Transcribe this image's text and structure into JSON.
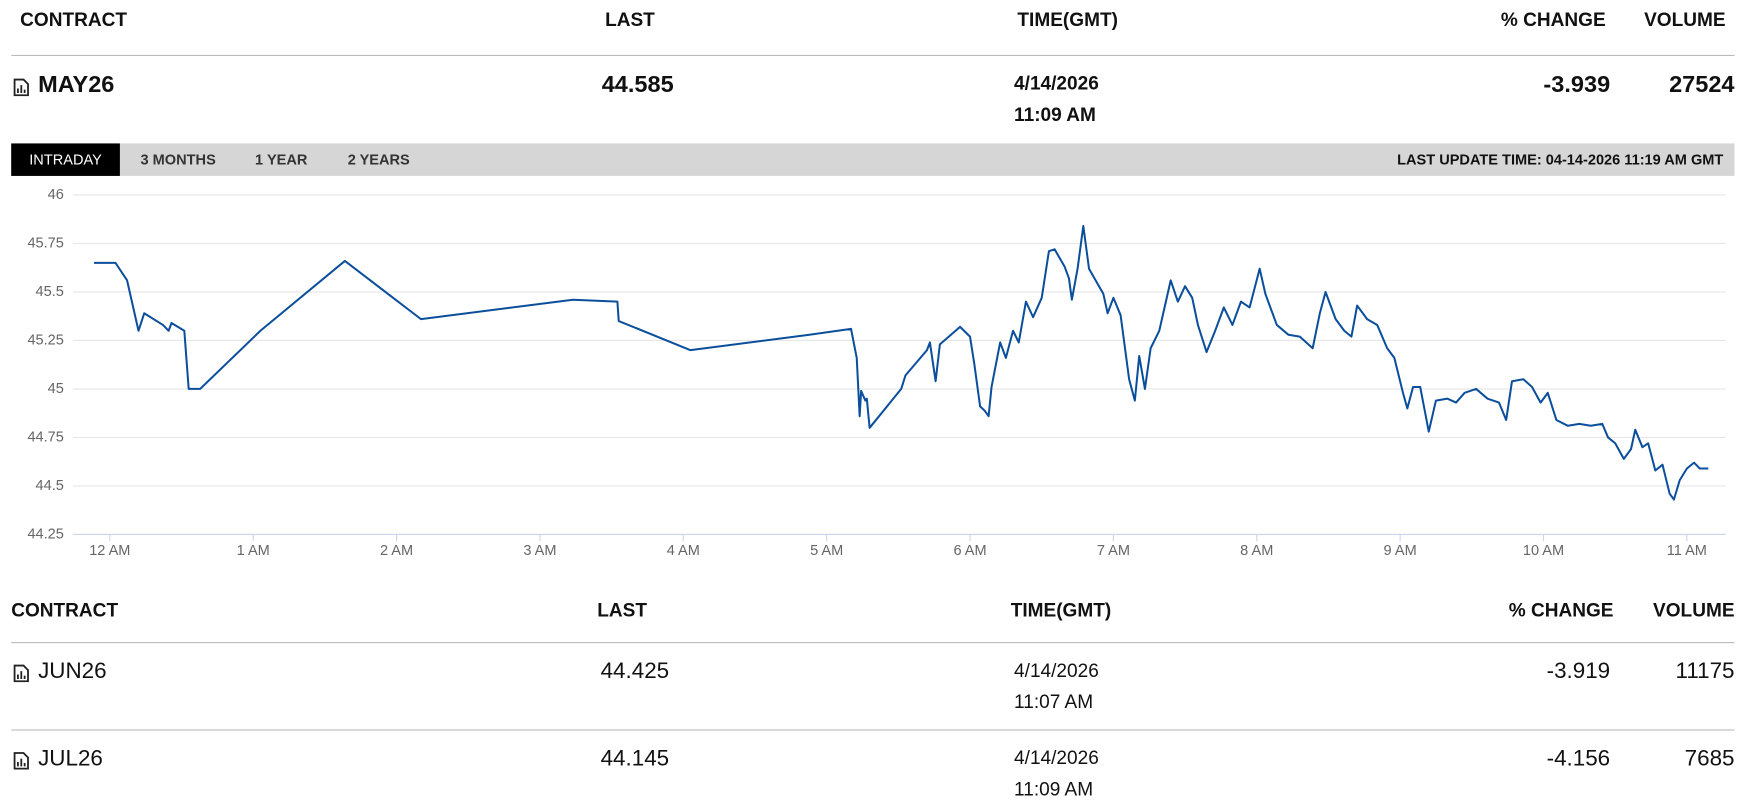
{
  "top_table": {
    "headers": [
      "CONTRACT",
      "LAST",
      "TIME(GMT)",
      "% CHANGE",
      "VOLUME"
    ],
    "rows": [
      {
        "contract": "MAY26",
        "last": 44.585,
        "date": "4/14/2026",
        "time": "11:09 AM",
        "change": -3.939,
        "volume": 27524
      }
    ]
  },
  "tabs": [
    "INTRADAY",
    "3 MONTHS",
    "1 YEAR",
    "2 YEARS"
  ],
  "last_update": "LAST UPDATE TIME: 04-14-2026 11:19 AM GMT",
  "chart_data": {
    "type": "line",
    "color": "#0b4f9c",
    "grid": true,
    "x": [
      -0.11,
      0.04,
      0.12,
      0.2,
      0.24,
      0.37,
      0.41,
      0.43,
      0.52,
      0.55,
      0.63,
      1.05,
      1.64,
      2.17,
      3.23,
      3.54,
      3.55,
      4.05,
      4.88,
      5.17,
      5.21,
      5.23,
      5.24,
      5.27,
      5.28,
      5.3,
      5.52,
      5.55,
      5.7,
      5.72,
      5.76,
      5.79,
      5.93,
      6.0,
      6.03,
      6.07,
      6.1,
      6.13,
      6.15,
      6.21,
      6.25,
      6.3,
      6.34,
      6.39,
      6.44,
      6.5,
      6.55,
      6.59,
      6.66,
      6.69,
      6.71,
      6.75,
      6.79,
      6.83,
      6.93,
      6.96,
      7.0,
      7.05,
      7.11,
      7.15,
      7.18,
      7.22,
      7.26,
      7.32,
      7.4,
      7.45,
      7.5,
      7.55,
      7.59,
      7.65,
      7.71,
      7.77,
      7.83,
      7.89,
      7.95,
      8.02,
      8.06,
      8.14,
      8.22,
      8.3,
      8.39,
      8.44,
      8.48,
      8.55,
      8.61,
      8.66,
      8.7,
      8.77,
      8.84,
      8.91,
      8.96,
      9.02,
      9.05,
      9.09,
      9.14,
      9.2,
      9.25,
      9.33,
      9.39,
      9.45,
      9.53,
      9.61,
      9.69,
      9.74,
      9.78,
      9.86,
      9.92,
      9.98,
      10.03,
      10.09,
      10.17,
      10.25,
      10.33,
      10.41,
      10.45,
      10.5,
      10.56,
      10.61,
      10.64,
      10.69,
      10.73,
      10.78,
      10.83,
      10.88,
      10.91,
      10.95,
      11.0,
      11.05,
      11.09,
      11.15
    ],
    "values": [
      45.65,
      45.65,
      45.56,
      45.3,
      45.39,
      45.33,
      45.3,
      45.34,
      45.3,
      45.0,
      45.0,
      45.3,
      45.66,
      45.36,
      45.46,
      45.45,
      45.35,
      45.2,
      45.28,
      45.31,
      45.16,
      44.86,
      44.99,
      44.94,
      44.95,
      44.8,
      45.0,
      45.07,
      45.2,
      45.24,
      45.04,
      45.23,
      45.32,
      45.27,
      45.13,
      44.91,
      44.89,
      44.86,
      45.01,
      45.24,
      45.16,
      45.3,
      45.24,
      45.45,
      45.37,
      45.47,
      45.71,
      45.72,
      45.63,
      45.57,
      45.46,
      45.62,
      45.84,
      45.62,
      45.49,
      45.39,
      45.47,
      45.38,
      45.05,
      44.94,
      45.17,
      45.0,
      45.21,
      45.3,
      45.56,
      45.45,
      45.53,
      45.47,
      45.33,
      45.19,
      45.3,
      45.42,
      45.33,
      45.45,
      45.42,
      45.62,
      45.49,
      45.33,
      45.28,
      45.27,
      45.21,
      45.39,
      45.5,
      45.36,
      45.3,
      45.27,
      45.43,
      45.36,
      45.33,
      45.21,
      45.16,
      44.98,
      44.9,
      45.01,
      45.01,
      44.78,
      44.94,
      44.95,
      44.93,
      44.98,
      45.0,
      44.95,
      44.93,
      44.84,
      45.04,
      45.05,
      45.01,
      44.93,
      44.98,
      44.84,
      44.81,
      44.82,
      44.81,
      44.82,
      44.75,
      44.72,
      44.64,
      44.69,
      44.79,
      44.7,
      44.72,
      44.58,
      44.61,
      44.46,
      44.43,
      44.53,
      44.59,
      44.62,
      44.59,
      44.59
    ],
    "xlim": [
      -0.258,
      11.27
    ],
    "ylim": [
      44.25,
      46
    ],
    "xticks": [
      {
        "value": 0,
        "label": "12 AM"
      },
      {
        "value": 1,
        "label": "1 AM"
      },
      {
        "value": 2,
        "label": "2 AM"
      },
      {
        "value": 3,
        "label": "3 AM"
      },
      {
        "value": 4,
        "label": "4 AM"
      },
      {
        "value": 5,
        "label": "5 AM"
      },
      {
        "value": 6,
        "label": "6 AM"
      },
      {
        "value": 7,
        "label": "7 AM"
      },
      {
        "value": 8,
        "label": "8 AM"
      },
      {
        "value": 9,
        "label": "9 AM"
      },
      {
        "value": 10,
        "label": "10 AM"
      },
      {
        "value": 11,
        "label": "11 AM"
      }
    ],
    "yticks": [
      44.25,
      44.5,
      44.75,
      45,
      45.25,
      45.5,
      45.75,
      46
    ]
  },
  "bottom_table": {
    "headers": [
      "CONTRACT",
      "LAST",
      "TIME(GMT)",
      "% CHANGE",
      "VOLUME"
    ],
    "rows": [
      {
        "contract": "JUN26",
        "last": 44.425,
        "date": "4/14/2026",
        "time": "11:07 AM",
        "change": -3.919,
        "volume": 11175
      },
      {
        "contract": "JUL26",
        "last": 44.145,
        "date": "4/14/2026",
        "time": "11:09 AM",
        "change": -4.156,
        "volume": 7685
      }
    ]
  }
}
